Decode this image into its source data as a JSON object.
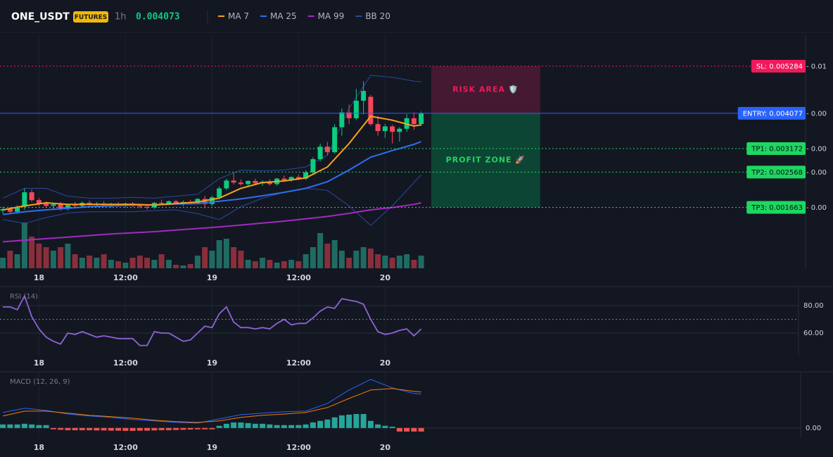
{
  "header": {
    "symbol": "ONE_USDT",
    "badge": "FUTURES",
    "interval": "1h",
    "price": 0.004073
  },
  "chart_data": [
    {
      "type": "candlestick",
      "xlim": [
        -0.4,
        111.3
      ],
      "ylim": [
        0.0001,
        0.00608
      ],
      "xticks": [
        {
          "value": 5,
          "label": "18"
        },
        {
          "value": 17,
          "label": "12:00"
        },
        {
          "value": 29,
          "label": "19"
        },
        {
          "value": 41,
          "label": "12:00"
        },
        {
          "value": 53,
          "label": "20"
        }
      ],
      "up_color": "#0ecb81",
      "down_color": "#f6465d",
      "open": [
        0.00158,
        0.00162,
        0.00155,
        0.00168,
        0.00205,
        0.00185,
        0.00176,
        0.0017,
        0.00174,
        0.00163,
        0.00172,
        0.0017,
        0.00178,
        0.00174,
        0.00176,
        0.00172,
        0.00175,
        0.00172,
        0.00176,
        0.0017,
        0.00168,
        0.00166,
        0.00178,
        0.00176,
        0.00182,
        0.00178,
        0.0018,
        0.00178,
        0.00188,
        0.00175,
        0.00192,
        0.00215,
        0.00235,
        0.0023,
        0.00226,
        0.00234,
        0.00228,
        0.00232,
        0.00226,
        0.0024,
        0.00236,
        0.00244,
        0.0024,
        0.00256,
        0.0029,
        0.00322,
        0.00308,
        0.00372,
        0.0041,
        0.00395,
        0.0044,
        0.0045,
        0.0038,
        0.00362,
        0.00374,
        0.0036,
        0.00368,
        0.00395,
        0.0038
      ],
      "high": [
        0.00168,
        0.00166,
        0.00172,
        0.00215,
        0.00212,
        0.0019,
        0.00182,
        0.00178,
        0.0018,
        0.00176,
        0.0018,
        0.00182,
        0.00184,
        0.0018,
        0.00182,
        0.00178,
        0.0018,
        0.00178,
        0.0018,
        0.00176,
        0.00174,
        0.0018,
        0.00186,
        0.00184,
        0.00186,
        0.00184,
        0.00186,
        0.0019,
        0.00196,
        0.00196,
        0.0022,
        0.0024,
        0.00255,
        0.00238,
        0.00236,
        0.0024,
        0.00236,
        0.00238,
        0.00242,
        0.00248,
        0.00246,
        0.0025,
        0.00262,
        0.00295,
        0.0033,
        0.00334,
        0.0038,
        0.0042,
        0.0043,
        0.0047,
        0.0049,
        0.00455,
        0.004,
        0.0038,
        0.00378,
        0.00372,
        0.00405,
        0.0041,
        0.00412
      ],
      "low": [
        0.0015,
        0.00152,
        0.0015,
        0.0016,
        0.0018,
        0.0017,
        0.00165,
        0.00162,
        0.00158,
        0.00158,
        0.00166,
        0.00166,
        0.0017,
        0.00168,
        0.00168,
        0.00166,
        0.00168,
        0.00166,
        0.00168,
        0.00164,
        0.0016,
        0.00162,
        0.00172,
        0.00172,
        0.00174,
        0.0017,
        0.00174,
        0.00174,
        0.00164,
        0.0017,
        0.00188,
        0.0021,
        0.00225,
        0.00222,
        0.0022,
        0.00224,
        0.00222,
        0.00222,
        0.00222,
        0.00232,
        0.00232,
        0.00236,
        0.00236,
        0.0025,
        0.00284,
        0.003,
        0.00304,
        0.0035,
        0.0038,
        0.0039,
        0.00405,
        0.00375,
        0.0035,
        0.00345,
        0.0033,
        0.00335,
        0.0036,
        0.00365,
        0.00375
      ],
      "close": [
        0.00162,
        0.00155,
        0.00168,
        0.00205,
        0.00185,
        0.00176,
        0.0017,
        0.00174,
        0.00163,
        0.00172,
        0.0017,
        0.00178,
        0.00174,
        0.00176,
        0.00172,
        0.00175,
        0.00172,
        0.00176,
        0.0017,
        0.00168,
        0.00166,
        0.00178,
        0.00176,
        0.00182,
        0.00178,
        0.0018,
        0.00178,
        0.00188,
        0.00175,
        0.00192,
        0.00215,
        0.00235,
        0.0023,
        0.00226,
        0.00234,
        0.00228,
        0.00232,
        0.00226,
        0.0024,
        0.00236,
        0.00244,
        0.0024,
        0.00256,
        0.0029,
        0.00322,
        0.00308,
        0.00372,
        0.0041,
        0.00395,
        0.0044,
        0.00465,
        0.0038,
        0.00362,
        0.00374,
        0.0036,
        0.00368,
        0.00395,
        0.0038,
        0.00407
      ],
      "volume": [
        15,
        25,
        20,
        65,
        45,
        35,
        30,
        25,
        30,
        35,
        20,
        15,
        18,
        15,
        20,
        12,
        10,
        8,
        15,
        18,
        15,
        12,
        20,
        12,
        5,
        4,
        6,
        18,
        30,
        25,
        40,
        42,
        30,
        25,
        12,
        10,
        15,
        12,
        8,
        10,
        12,
        10,
        20,
        30,
        50,
        35,
        40,
        25,
        15,
        25,
        30,
        28,
        20,
        18,
        15,
        18,
        20,
        12,
        18
      ],
      "volume_ylim": [
        0,
        331
      ],
      "volume_up_color": "#1f6b62",
      "volume_down_color": "#8a2e3b",
      "series": [
        {
          "name": "BB 20",
          "color": "#2a4a9c",
          "x": [
            0,
            3,
            6,
            9,
            12,
            15,
            18,
            21,
            24,
            27,
            30,
            33,
            36,
            39,
            42,
            45,
            48,
            51,
            54,
            57,
            58
          ],
          "values": [
            0.0019,
            0.00215,
            0.00215,
            0.00195,
            0.0019,
            0.0019,
            0.00192,
            0.0019,
            0.00195,
            0.002,
            0.0024,
            0.00262,
            0.0026,
            0.00262,
            0.0027,
            0.003,
            0.0042,
            0.00505,
            0.005,
            0.0049,
            0.00488
          ],
          "lower": [
            0.00135,
            0.00125,
            0.0014,
            0.00152,
            0.00155,
            0.00155,
            0.00155,
            0.00158,
            0.0016,
            0.0015,
            0.00135,
            0.00168,
            0.0019,
            0.00205,
            0.00215,
            0.0021,
            0.0017,
            0.0012,
            0.0017,
            0.0023,
            0.0025
          ]
        },
        {
          "name": "MA 99",
          "color": "#a12bbf",
          "x": [
            0,
            3,
            6,
            9,
            12,
            15,
            18,
            21,
            24,
            27,
            30,
            33,
            36,
            39,
            42,
            45,
            48,
            51,
            54,
            57,
            58
          ],
          "values": [
            0.00078,
            0.00082,
            0.00086,
            0.0009,
            0.00094,
            0.00098,
            0.00101,
            0.00104,
            0.00108,
            0.00112,
            0.00116,
            0.00121,
            0.00126,
            0.00131,
            0.00137,
            0.00143,
            0.00151,
            0.0016,
            0.00166,
            0.00174,
            0.00178
          ]
        },
        {
          "name": "MA 25",
          "color": "#2f6fed",
          "x": [
            0,
            3,
            6,
            9,
            12,
            15,
            18,
            21,
            24,
            27,
            30,
            33,
            36,
            39,
            42,
            45,
            48,
            51,
            54,
            57,
            58
          ],
          "values": [
            0.00148,
            0.00155,
            0.0016,
            0.00164,
            0.00168,
            0.0017,
            0.00172,
            0.00173,
            0.00175,
            0.00176,
            0.00182,
            0.00188,
            0.00196,
            0.00205,
            0.00215,
            0.00232,
            0.00262,
            0.00295,
            0.00312,
            0.00328,
            0.00335
          ]
        },
        {
          "name": "MA 7",
          "color": "#f7a21b",
          "x": [
            0,
            3,
            6,
            9,
            12,
            15,
            18,
            21,
            24,
            27,
            30,
            33,
            36,
            39,
            42,
            45,
            48,
            51,
            54,
            57,
            58
          ],
          "values": [
            0.0016,
            0.0017,
            0.00178,
            0.00174,
            0.00174,
            0.00174,
            0.00174,
            0.00172,
            0.00176,
            0.0018,
            0.0019,
            0.00215,
            0.0023,
            0.00234,
            0.00242,
            0.0027,
            0.0033,
            0.004,
            0.0039,
            0.00375,
            0.00378
          ]
        }
      ],
      "levels": [
        {
          "label": "SL: 0.005284",
          "value": 0.005284,
          "pnl": "- 0.01",
          "color": "#f0195a",
          "text_color": "#ffffff",
          "dash": true
        },
        {
          "label": "ENTRY: 0.004077",
          "value": 0.004077,
          "pnl": "- 0.00",
          "color": "#2962ff",
          "text_color": "#ffffff",
          "dash": false
        },
        {
          "label": "TP1: 0.003172",
          "value": 0.003172,
          "pnl": "- 0.00",
          "color": "#1ed760",
          "text_color": "#0b0e14",
          "dash": true
        },
        {
          "label": "TP2: 0.002568",
          "value": 0.002568,
          "pnl": "- 0.00",
          "color": "#1ed760",
          "text_color": "#0b0e14",
          "dash": true
        },
        {
          "label": "TP3: 0.001663",
          "value": 0.001663,
          "pnl": "- 0.00",
          "color": "#1ed760",
          "text_color": "#0b0e14",
          "dash": true
        }
      ],
      "zone_x": [
        59.4,
        74.5
      ],
      "zones": [
        {
          "label": "RISK AREA 🛡️",
          "from": 0.005284,
          "to": 0.004077,
          "color": "#f0195a",
          "fill": "#4a1a33"
        },
        {
          "label": "PROFIT ZONE 🚀",
          "from": 0.004077,
          "to": 0.001663,
          "color": "#1ed760",
          "fill": "#0d4a36"
        }
      ]
    },
    {
      "type": "line",
      "title": "RSI (14)",
      "xlim": [
        -0.4,
        111.3
      ],
      "ylim": [
        43.6,
        93.3
      ],
      "xticks": [
        {
          "value": 5,
          "label": "18"
        },
        {
          "value": 17,
          "label": "12:00"
        },
        {
          "value": 29,
          "label": "19"
        },
        {
          "value": 41,
          "label": "12:00"
        },
        {
          "value": 53,
          "label": "20"
        }
      ],
      "yticks": [
        {
          "value": 80,
          "label": "80.00"
        },
        {
          "value": 60,
          "label": "60.00"
        }
      ],
      "hline": 70,
      "series": [
        {
          "color": "#8e63d6",
          "values": [
            79,
            79,
            77,
            87,
            72,
            63,
            57,
            54,
            52,
            60,
            59,
            61,
            59,
            57,
            58,
            57,
            56,
            56,
            56,
            51,
            51,
            61,
            60,
            60,
            57,
            54,
            55,
            60,
            65,
            64,
            74,
            79,
            68,
            64,
            64,
            63,
            64,
            63,
            67,
            70,
            66,
            67,
            67,
            71,
            76,
            79,
            78,
            85,
            84,
            83,
            81,
            70,
            61,
            59,
            60,
            62,
            63,
            58,
            63
          ]
        }
      ]
    },
    {
      "type": "macd",
      "title": "MACD (12, 26, 9)",
      "xlim": [
        -0.4,
        111.3
      ],
      "ylim": [
        -4.5e-05,
        0.00025
      ],
      "xticks": [
        {
          "value": 5,
          "label": "18"
        },
        {
          "value": 17,
          "label": "12:00"
        },
        {
          "value": 29,
          "label": "19"
        },
        {
          "value": 41,
          "label": "12:00"
        },
        {
          "value": 53,
          "label": "20"
        }
      ],
      "yticks": [
        {
          "value": 0,
          "label": "0.00"
        }
      ],
      "up_color": "#26a69a",
      "down_color": "#ef5350",
      "histogram": [
        1.6e-05,
        1.6e-05,
        1.6e-05,
        1.9e-05,
        1.6e-05,
        1.3e-05,
        1.3e-05,
        -6e-06,
        -8e-06,
        -1e-05,
        -1e-05,
        -1e-05,
        -1e-05,
        -1.1e-05,
        -1.1e-05,
        -1.2e-05,
        -1.2e-05,
        -1.3e-05,
        -1.3e-05,
        -1.2e-05,
        -1.2e-05,
        -1.1e-05,
        -1e-05,
        -1e-05,
        -9e-06,
        -8e-06,
        -7e-06,
        -6e-06,
        -6e-06,
        -6e-06,
        1e-05,
        1.9e-05,
        2.5e-05,
        2.5e-05,
        2.2e-05,
        1.9e-05,
        1.9e-05,
        1.6e-05,
        1.3e-05,
        1.3e-05,
        1.3e-05,
        1.3e-05,
        1.6e-05,
        2.5e-05,
        3.2e-05,
        3.8e-05,
        4.8e-05,
        5.7e-05,
        6e-05,
        6.3e-05,
        6.3e-05,
        3.2e-05,
        1.6e-05,
        1e-05,
        6e-06,
        -1.6e-05,
        -1.6e-05,
        -1.6e-05,
        -1.6e-05
      ],
      "series": [
        {
          "color": "#2962ff",
          "x": [
            0,
            3,
            6,
            9,
            12,
            15,
            18,
            21,
            24,
            27,
            30,
            33,
            36,
            39,
            42,
            45,
            48,
            51,
            54,
            57,
            58
          ],
          "values": [
            7e-05,
            8.9e-05,
            7.9e-05,
            6.3e-05,
            5.4e-05,
            4.8e-05,
            3.8e-05,
            3.2e-05,
            2.5e-05,
            2.2e-05,
            4.1e-05,
            6e-05,
            6.7e-05,
            7.3e-05,
            7.6e-05,
            0.000111,
            0.000171,
            0.000219,
            0.000181,
            0.000155,
            0.000152
          ]
        },
        {
          "color": "#f57c00",
          "x": [
            0,
            3,
            6,
            9,
            12,
            15,
            18,
            21,
            24,
            27,
            30,
            33,
            36,
            39,
            42,
            45,
            48,
            51,
            54,
            57,
            58
          ],
          "values": [
            5.4e-05,
            7.6e-05,
            7.6e-05,
            6.7e-05,
            5.7e-05,
            5.1e-05,
            4.4e-05,
            3.5e-05,
            2.9e-05,
            2.5e-05,
            3.2e-05,
            4.8e-05,
            5.7e-05,
            6.3e-05,
            7e-05,
            9.2e-05,
            0.000133,
            0.000171,
            0.000178,
            0.000165,
            0.000162
          ]
        }
      ]
    }
  ]
}
